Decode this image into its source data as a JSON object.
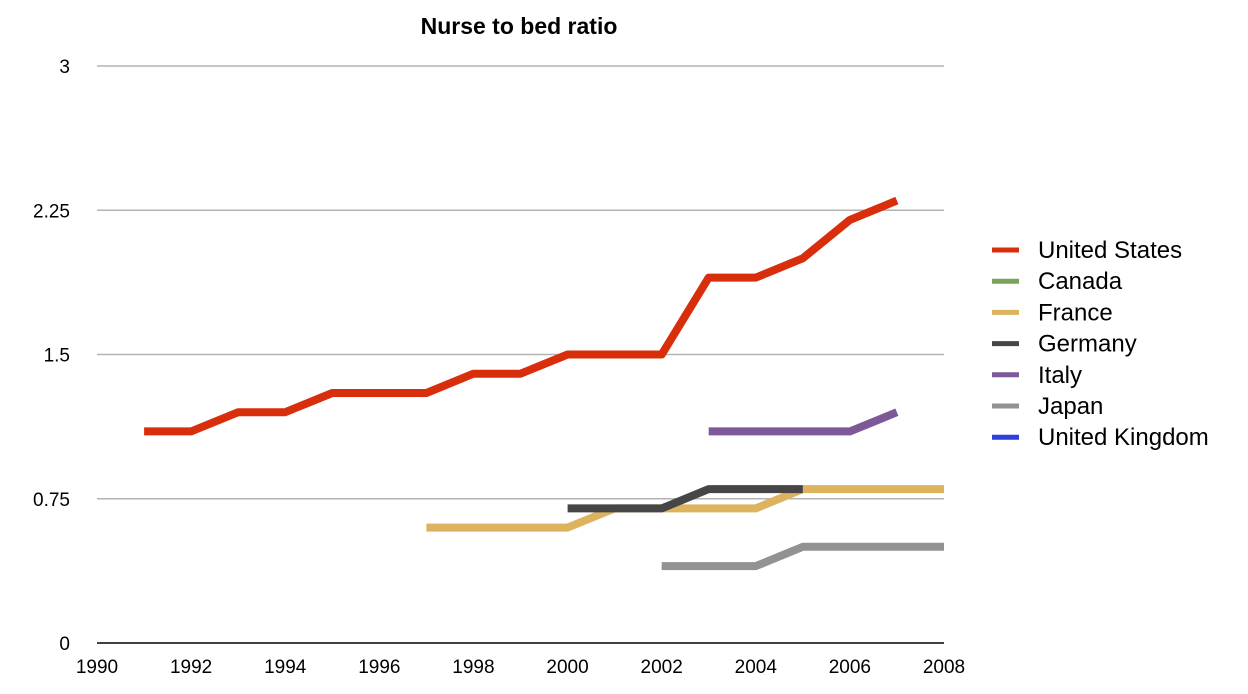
{
  "chart_data": {
    "type": "line",
    "title": "Nurse to bed ratio",
    "xlabel": "",
    "ylabel": "",
    "xlim": [
      1990,
      2008
    ],
    "ylim": [
      0,
      3
    ],
    "x_ticks": [
      1990,
      1992,
      1994,
      1996,
      1998,
      2000,
      2002,
      2004,
      2006,
      2008
    ],
    "y_ticks": [
      0,
      0.75,
      1.5,
      2.25,
      3
    ],
    "y_tick_labels": [
      "0",
      "0.75",
      "1.5",
      "2.25",
      "3"
    ],
    "grid": true,
    "legend_position": "right",
    "series": [
      {
        "name": "United States",
        "color": "#d82e0c",
        "points": [
          [
            1991,
            1.1
          ],
          [
            1992,
            1.1
          ],
          [
            1993,
            1.2
          ],
          [
            1994,
            1.2
          ],
          [
            1995,
            1.3
          ],
          [
            1996,
            1.3
          ],
          [
            1997,
            1.3
          ],
          [
            1998,
            1.4
          ],
          [
            1999,
            1.4
          ],
          [
            2000,
            1.5
          ],
          [
            2001,
            1.5
          ],
          [
            2002,
            1.5
          ],
          [
            2003,
            1.9
          ],
          [
            2004,
            1.9
          ],
          [
            2005,
            2.0
          ],
          [
            2006,
            2.2
          ],
          [
            2007,
            2.3
          ]
        ]
      },
      {
        "name": "Canada",
        "color": "#7aa35a",
        "points": []
      },
      {
        "name": "France",
        "color": "#ddb35f",
        "points": [
          [
            1997,
            0.6
          ],
          [
            1998,
            0.6
          ],
          [
            1999,
            0.6
          ],
          [
            2000,
            0.6
          ],
          [
            2001,
            0.7
          ],
          [
            2002,
            0.7
          ],
          [
            2003,
            0.7
          ],
          [
            2004,
            0.7
          ],
          [
            2005,
            0.8
          ],
          [
            2006,
            0.8
          ],
          [
            2007,
            0.8
          ],
          [
            2008,
            0.8
          ]
        ]
      },
      {
        "name": "Germany",
        "color": "#464646",
        "points": [
          [
            2000,
            0.7
          ],
          [
            2001,
            0.7
          ],
          [
            2002,
            0.7
          ],
          [
            2003,
            0.8
          ],
          [
            2004,
            0.8
          ],
          [
            2005,
            0.8
          ]
        ]
      },
      {
        "name": "Italy",
        "color": "#7d5997",
        "points": [
          [
            2003,
            1.1
          ],
          [
            2004,
            1.1
          ],
          [
            2005,
            1.1
          ],
          [
            2006,
            1.1
          ],
          [
            2007,
            1.2
          ]
        ]
      },
      {
        "name": "Japan",
        "color": "#929292",
        "points": [
          [
            2002,
            0.4
          ],
          [
            2003,
            0.4
          ],
          [
            2004,
            0.4
          ],
          [
            2005,
            0.5
          ],
          [
            2006,
            0.5
          ],
          [
            2007,
            0.5
          ],
          [
            2008,
            0.5
          ]
        ]
      },
      {
        "name": "United Kingdom",
        "color": "#2e3fe0",
        "points": []
      }
    ]
  }
}
